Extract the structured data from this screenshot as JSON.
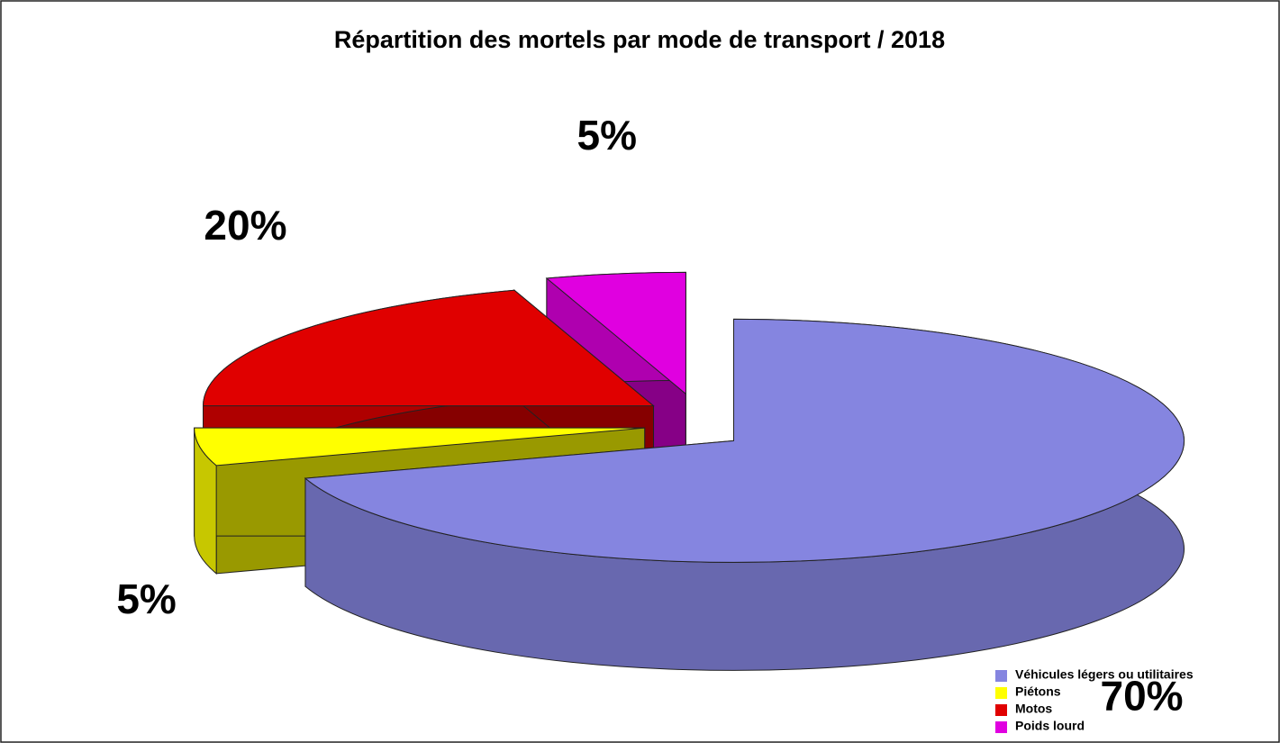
{
  "chart_data": {
    "type": "pie",
    "title": "Répartition des mortels par mode de transport / 2018",
    "categories": [
      "Véhicules légers ou utilitaires",
      "Piétons",
      "Motos",
      "Poids lourd"
    ],
    "values": [
      70,
      5,
      20,
      5
    ],
    "value_labels": [
      "70%",
      "5%",
      "20%",
      "5%"
    ],
    "colors": [
      "#8585e0",
      "#ffff00",
      "#e00000",
      "#e000e0"
    ],
    "legend": "lower right"
  }
}
